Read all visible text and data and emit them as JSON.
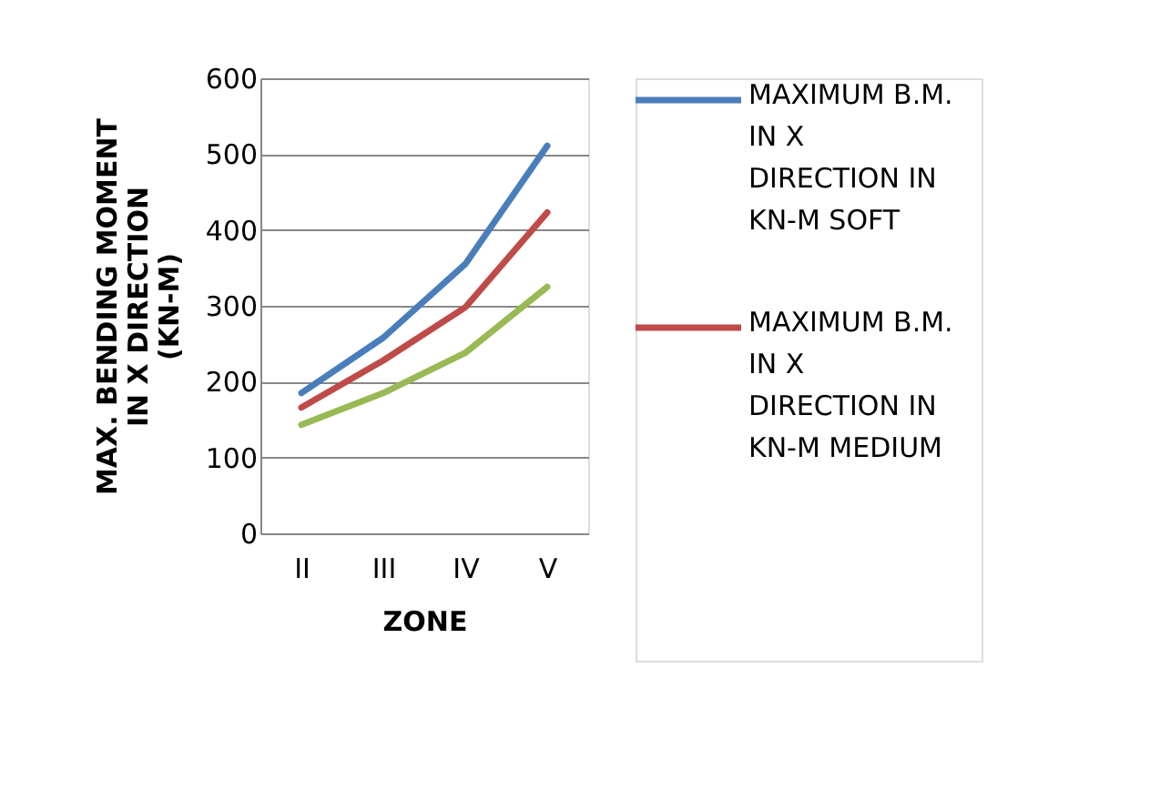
{
  "chart_data": {
    "type": "line",
    "xlabel": "ZONE",
    "ylabel": "MAX. BENDING MOMENT IN X DIRECTION (KN-M)",
    "categories": [
      "II",
      "III",
      "IV",
      "V"
    ],
    "series": [
      {
        "name": "MAXIMUM B.M. IN X DIRECTION IN KN-M SOFT",
        "color": "#4a7ebb",
        "values": [
          185,
          258,
          355,
          511
        ]
      },
      {
        "name": "MAXIMUM B.M. IN X DIRECTION IN KN-M MEDIUM",
        "color": "#be4b48",
        "values": [
          166,
          228,
          298,
          423
        ]
      },
      {
        "color": "#98b954",
        "values": [
          143,
          185,
          238,
          325
        ]
      }
    ],
    "ylim": [
      0,
      600
    ],
    "yticks": [
      0,
      100,
      200,
      300,
      400,
      500,
      600
    ],
    "grid": "y",
    "legend": "right",
    "marker": "none",
    "line_style": "solid"
  }
}
